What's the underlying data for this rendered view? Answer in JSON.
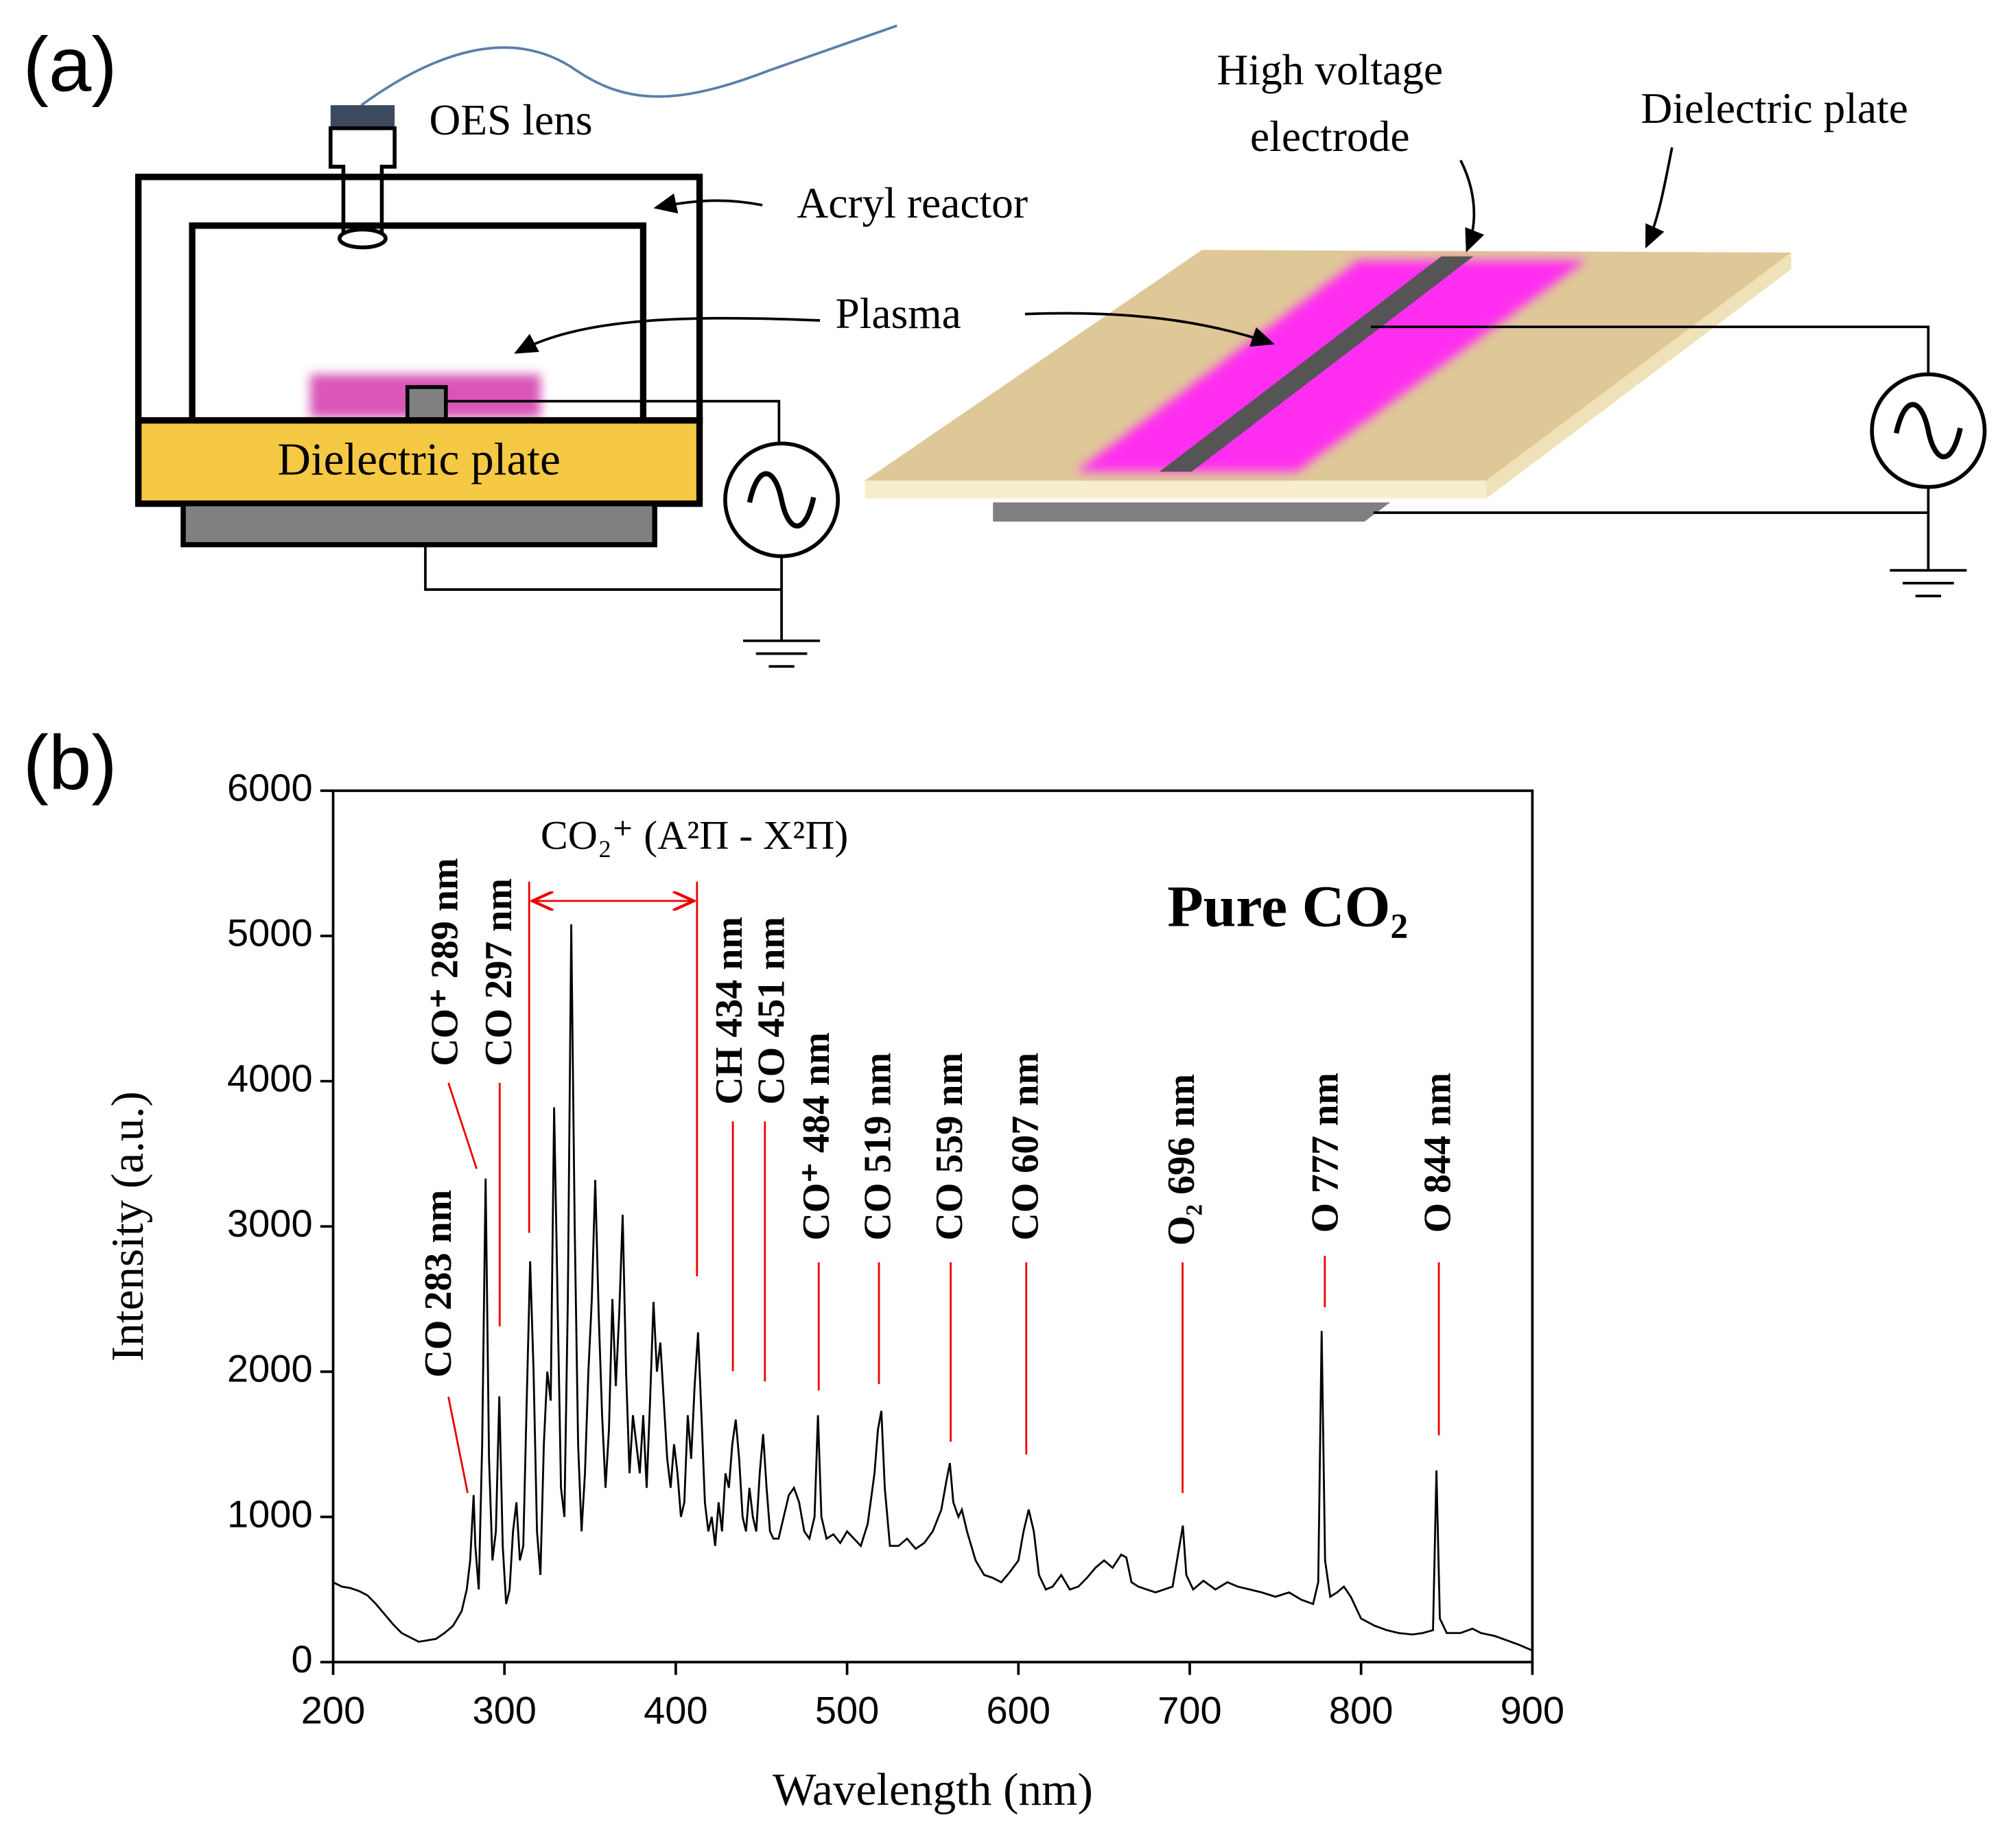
{
  "panel_labels": [
    "(a)",
    "(b)"
  ],
  "diagram": {
    "oes_lens": "OES lens",
    "acryl_reactor": "Acryl reactor",
    "plasma": "Plasma",
    "dielectric_plate_left": "Dielectric plate",
    "high_voltage_electrode": [
      "High voltage",
      "electrode"
    ],
    "dielectric_plate_right": "Dielectric plate"
  },
  "chart_data": {
    "type": "line",
    "xlabel": "Wavelength (nm)",
    "ylabel": "Intensity  (a.u.)",
    "title": "Pure CO₂",
    "band_label": "CO₂⁺ (A²Π - X²Π)",
    "annotations": [
      "CO 283 nm",
      "CO⁺ 289 nm",
      "CO 297 nm",
      "CH 434 nm",
      "CO 451 nm",
      "CO⁺ 484 nm",
      "CO 519 nm",
      "CO 559 nm",
      "CO 607 nm",
      "O₂ 696 nm",
      "O 777 nm",
      "O 844 nm"
    ],
    "color": "#000000",
    "xlim": [
      200,
      900
    ],
    "ylim": [
      0,
      6000
    ],
    "xticks": [
      200,
      300,
      400,
      500,
      600,
      700,
      800,
      900
    ],
    "yticks": [
      0,
      1000,
      2000,
      3000,
      4000,
      5000,
      6000
    ],
    "x": [
      200,
      205,
      210,
      215,
      220,
      225,
      230,
      235,
      240,
      245,
      250,
      255,
      260,
      265,
      270,
      275,
      278,
      280,
      282,
      283,
      285,
      287,
      289,
      291,
      293,
      295,
      297,
      299,
      301,
      303,
      305,
      307,
      309,
      311,
      313,
      315,
      317,
      319,
      321,
      323,
      325,
      327,
      329,
      331,
      333,
      335,
      337,
      339,
      341,
      343,
      345,
      347,
      349,
      351,
      353,
      355,
      357,
      359,
      361,
      363,
      365,
      367,
      369,
      371,
      373,
      375,
      377,
      379,
      381,
      383,
      385,
      387,
      389,
      391,
      393,
      395,
      397,
      399,
      401,
      403,
      405,
      407,
      409,
      411,
      413,
      415,
      417,
      419,
      421,
      423,
      425,
      427,
      429,
      431,
      433,
      435,
      437,
      439,
      441,
      443,
      445,
      447,
      449,
      451,
      453,
      455,
      457,
      460,
      463,
      466,
      469,
      472,
      475,
      478,
      481,
      483,
      485,
      488,
      492,
      496,
      500,
      504,
      508,
      512,
      516,
      518,
      520,
      522,
      525,
      530,
      535,
      540,
      545,
      550,
      555,
      558,
      560,
      562,
      565,
      567,
      570,
      575,
      580,
      585,
      590,
      595,
      600,
      603,
      606,
      609,
      612,
      616,
      620,
      625,
      630,
      635,
      640,
      645,
      650,
      655,
      660,
      663,
      666,
      670,
      675,
      680,
      685,
      690,
      694,
      696,
      698,
      702,
      708,
      715,
      722,
      728,
      735,
      742,
      750,
      758,
      765,
      772,
      775,
      777,
      779,
      782,
      786,
      790,
      794,
      800,
      808,
      815,
      822,
      830,
      836,
      842,
      844,
      846,
      850,
      858,
      865,
      870,
      878,
      885,
      892,
      900
    ],
    "values": [
      550,
      520,
      510,
      490,
      460,
      400,
      330,
      260,
      200,
      170,
      140,
      150,
      160,
      200,
      250,
      350,
      500,
      700,
      1150,
      800,
      500,
      1500,
      3330,
      1400,
      700,
      900,
      1830,
      800,
      400,
      500,
      900,
      1100,
      700,
      800,
      1800,
      2760,
      2000,
      900,
      600,
      1500,
      2000,
      1800,
      3820,
      2500,
      1200,
      1000,
      2500,
      5080,
      3000,
      1500,
      900,
      1300,
      2000,
      2500,
      3320,
      2400,
      1700,
      1200,
      1600,
      2500,
      1900,
      2400,
      3080,
      2000,
      1300,
      1700,
      1500,
      1300,
      1700,
      1200,
      1800,
      2480,
      2000,
      2200,
      1800,
      1400,
      1200,
      1500,
      1300,
      1000,
      1100,
      1700,
      1400,
      1900,
      2270,
      1700,
      1100,
      900,
      1000,
      800,
      1100,
      900,
      1300,
      1200,
      1500,
      1670,
      1400,
      1000,
      900,
      1200,
      1000,
      900,
      1300,
      1570,
      1200,
      900,
      850,
      850,
      1000,
      1150,
      1200,
      1100,
      900,
      850,
      1000,
      1700,
      1000,
      850,
      880,
      820,
      900,
      850,
      800,
      950,
      1300,
      1600,
      1730,
      1200,
      800,
      800,
      850,
      780,
      820,
      900,
      1050,
      1250,
      1370,
      1100,
      1000,
      1050,
      900,
      700,
      600,
      580,
      550,
      620,
      700,
      900,
      1050,
      900,
      600,
      500,
      520,
      600,
      500,
      520,
      580,
      650,
      700,
      650,
      740,
      720,
      550,
      520,
      500,
      480,
      500,
      520,
      800,
      940,
      600,
      500,
      560,
      500,
      550,
      520,
      500,
      480,
      450,
      480,
      430,
      400,
      550,
      2280,
      700,
      450,
      480,
      520,
      450,
      300,
      250,
      220,
      200,
      190,
      200,
      220,
      1320,
      300,
      200,
      200,
      230,
      200,
      180,
      150,
      120,
      80
    ]
  }
}
